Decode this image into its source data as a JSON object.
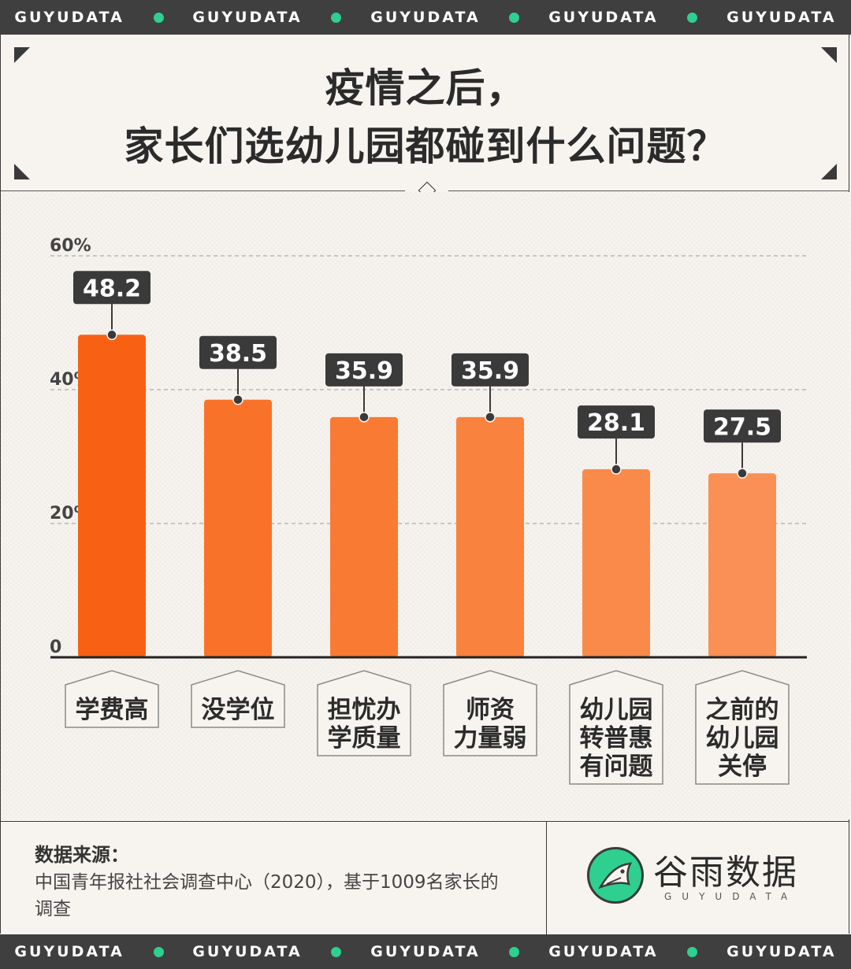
{
  "ticker": {
    "text": "GUYUDATA",
    "dot_color": "#2ecf8f"
  },
  "title": {
    "line1": "疫情之后，",
    "line2": "家长们选幼儿园都碰到什么问题？"
  },
  "chart_data": {
    "type": "bar",
    "categories": [
      "学费高",
      "没学位",
      "担忧办学质量",
      "师资力量弱",
      "幼儿园转普惠有问题",
      "之前的幼儿园关停"
    ],
    "category_lines": [
      [
        "学费高"
      ],
      [
        "没学位"
      ],
      [
        "担忧办",
        "学质量"
      ],
      [
        "师资",
        "力量弱"
      ],
      [
        "幼儿园",
        "转普惠",
        "有问题"
      ],
      [
        "之前的",
        "幼儿园",
        "关停"
      ]
    ],
    "values": [
      48.2,
      38.5,
      35.9,
      35.9,
      28.1,
      27.5
    ],
    "value_labels": [
      "48.2",
      "38.5",
      "35.9",
      "35.9",
      "28.1",
      "27.5"
    ],
    "y_ticks": [
      0,
      20,
      40,
      60
    ],
    "y_tick_labels": [
      "0",
      "20%",
      "40%",
      "60%"
    ],
    "ylim": [
      0,
      60
    ],
    "grid": "dashed",
    "legend": "none",
    "bar_colors": [
      "#f86114",
      "#f9722a",
      "#f97a32",
      "#f9823e",
      "#f98a4a",
      "#fa9055"
    ],
    "label_box_color": "#3a3a3a"
  },
  "footer": {
    "source_title": "数据来源：",
    "source_text": "中国青年报社社会调查中心（2020），基于1009名家长的调查",
    "logo_name": "谷雨数据",
    "logo_sub": "GUYUDATA"
  }
}
